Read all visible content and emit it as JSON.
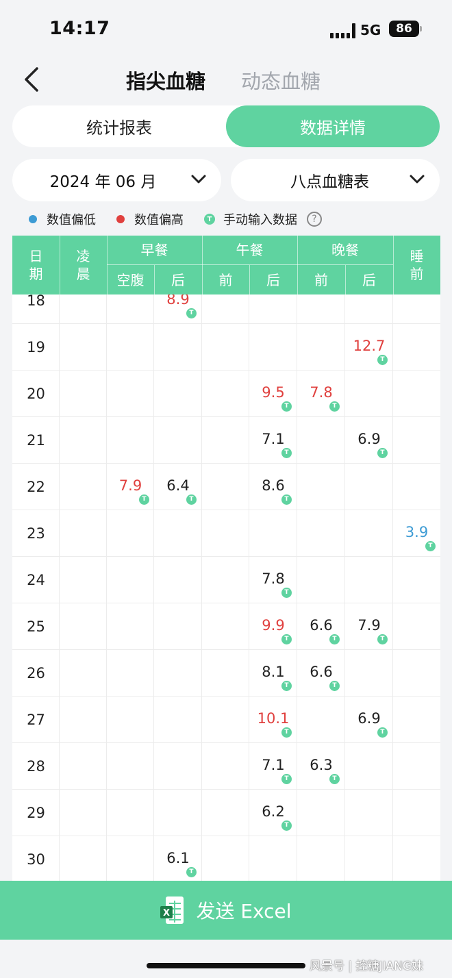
{
  "status_bar": {
    "time": "14:17",
    "network": "5G",
    "battery": "86"
  },
  "nav": {
    "title_active": "指尖血糖",
    "title_inactive": "动态血糖"
  },
  "segments": {
    "left": "统计报表",
    "right": "数据详情"
  },
  "filters": {
    "month": "2024 年 06 月",
    "table": "八点血糖表"
  },
  "legend": {
    "low": "数值偏低",
    "high": "数值偏高",
    "manual": "手动输入数据",
    "manual_icon_letter": "T",
    "help": "?"
  },
  "colors": {
    "accent": "#5fd3a0",
    "low": "#3d9bd4",
    "high": "#e0403e"
  },
  "table": {
    "headers": {
      "date": "日\n期",
      "dawn": "凌\n晨",
      "breakfast": "早餐",
      "breakfast_fasting": "空腹",
      "breakfast_after": "后",
      "lunch": "午餐",
      "lunch_before": "前",
      "lunch_after": "后",
      "dinner": "晚餐",
      "dinner_before": "前",
      "dinner_after": "后",
      "bedtime": "睡\n前"
    },
    "rows": [
      {
        "day": "18",
        "values": [
          "",
          "",
          "8.9",
          "",
          "",
          "",
          "",
          ""
        ],
        "status": [
          "",
          "",
          "high",
          "",
          "",
          "",
          "",
          ""
        ]
      },
      {
        "day": "19",
        "values": [
          "",
          "",
          "",
          "",
          "",
          "",
          "12.7",
          ""
        ],
        "status": [
          "",
          "",
          "",
          "",
          "",
          "",
          "high",
          ""
        ]
      },
      {
        "day": "20",
        "values": [
          "",
          "",
          "",
          "",
          "9.5",
          "7.8",
          "",
          ""
        ],
        "status": [
          "",
          "",
          "",
          "",
          "high",
          "high",
          "",
          ""
        ]
      },
      {
        "day": "21",
        "values": [
          "",
          "",
          "",
          "",
          "7.1",
          "",
          "6.9",
          ""
        ],
        "status": [
          "",
          "",
          "",
          "",
          "normal",
          "",
          "normal",
          ""
        ]
      },
      {
        "day": "22",
        "values": [
          "",
          "7.9",
          "6.4",
          "",
          "8.6",
          "",
          "",
          ""
        ],
        "status": [
          "",
          "high",
          "normal",
          "",
          "normal",
          "",
          "",
          ""
        ]
      },
      {
        "day": "23",
        "values": [
          "",
          "",
          "",
          "",
          "",
          "",
          "",
          "3.9"
        ],
        "status": [
          "",
          "",
          "",
          "",
          "",
          "",
          "",
          "low"
        ]
      },
      {
        "day": "24",
        "values": [
          "",
          "",
          "",
          "",
          "7.8",
          "",
          "",
          ""
        ],
        "status": [
          "",
          "",
          "",
          "",
          "normal",
          "",
          "",
          ""
        ]
      },
      {
        "day": "25",
        "values": [
          "",
          "",
          "",
          "",
          "9.9",
          "6.6",
          "7.9",
          ""
        ],
        "status": [
          "",
          "",
          "",
          "",
          "high",
          "normal",
          "normal",
          ""
        ]
      },
      {
        "day": "26",
        "values": [
          "",
          "",
          "",
          "",
          "8.1",
          "6.6",
          "",
          ""
        ],
        "status": [
          "",
          "",
          "",
          "",
          "normal",
          "normal",
          "",
          ""
        ]
      },
      {
        "day": "27",
        "values": [
          "",
          "",
          "",
          "",
          "10.1",
          "",
          "6.9",
          ""
        ],
        "status": [
          "",
          "",
          "",
          "",
          "high",
          "",
          "normal",
          ""
        ]
      },
      {
        "day": "28",
        "values": [
          "",
          "",
          "",
          "",
          "7.1",
          "6.3",
          "",
          ""
        ],
        "status": [
          "",
          "",
          "",
          "",
          "normal",
          "normal",
          "",
          ""
        ]
      },
      {
        "day": "29",
        "values": [
          "",
          "",
          "",
          "",
          "6.2",
          "",
          "",
          ""
        ],
        "status": [
          "",
          "",
          "",
          "",
          "normal",
          "",
          "",
          ""
        ]
      },
      {
        "day": "30",
        "values": [
          "",
          "",
          "6.1",
          "",
          "",
          "",
          "",
          ""
        ],
        "status": [
          "",
          "",
          "normal",
          "",
          "",
          "",
          "",
          ""
        ]
      }
    ]
  },
  "send_button": {
    "label": "发送 Excel",
    "icon": "excel-icon"
  },
  "watermark": "风景号 | 控糖JIANG妹"
}
